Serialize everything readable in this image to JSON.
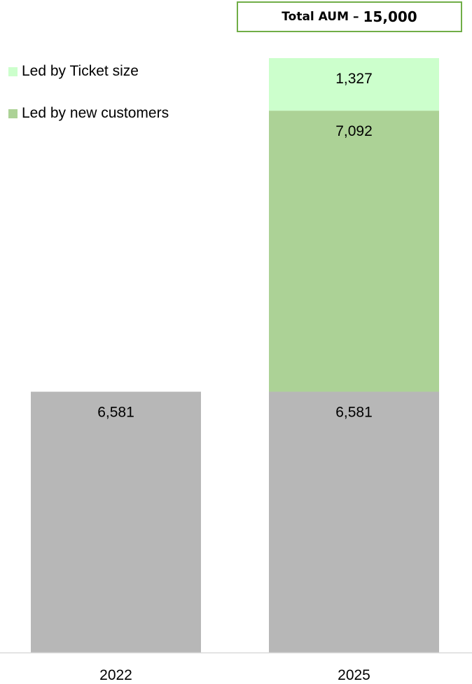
{
  "chart_data": {
    "type": "bar",
    "stacked": true,
    "categories": [
      "2022",
      "2025"
    ],
    "series": [
      {
        "name": "",
        "color": "#b7b7b7",
        "values": [
          6581,
          6581
        ]
      },
      {
        "name": "Led by new customers",
        "color": "#acd296",
        "values": [
          0,
          7092
        ]
      },
      {
        "name": "Led by Ticket size",
        "color": "#ccffcc",
        "values": [
          0,
          1327
        ]
      }
    ],
    "data_labels": {
      "2022": [
        "6,581"
      ],
      "2025": [
        "6,581",
        "7,092",
        "1,327"
      ]
    },
    "legend": [
      {
        "label": "Led by Ticket size",
        "color": "#ccffcc"
      },
      {
        "label": "Led by new customers",
        "color": "#acd296"
      }
    ],
    "legend_position": "top-left",
    "grid": false,
    "ylim": [
      0,
      15000
    ]
  },
  "total_box": {
    "label": "Total AUM",
    "separator": "–",
    "value": "15,000",
    "border_color": "#70ad47"
  }
}
